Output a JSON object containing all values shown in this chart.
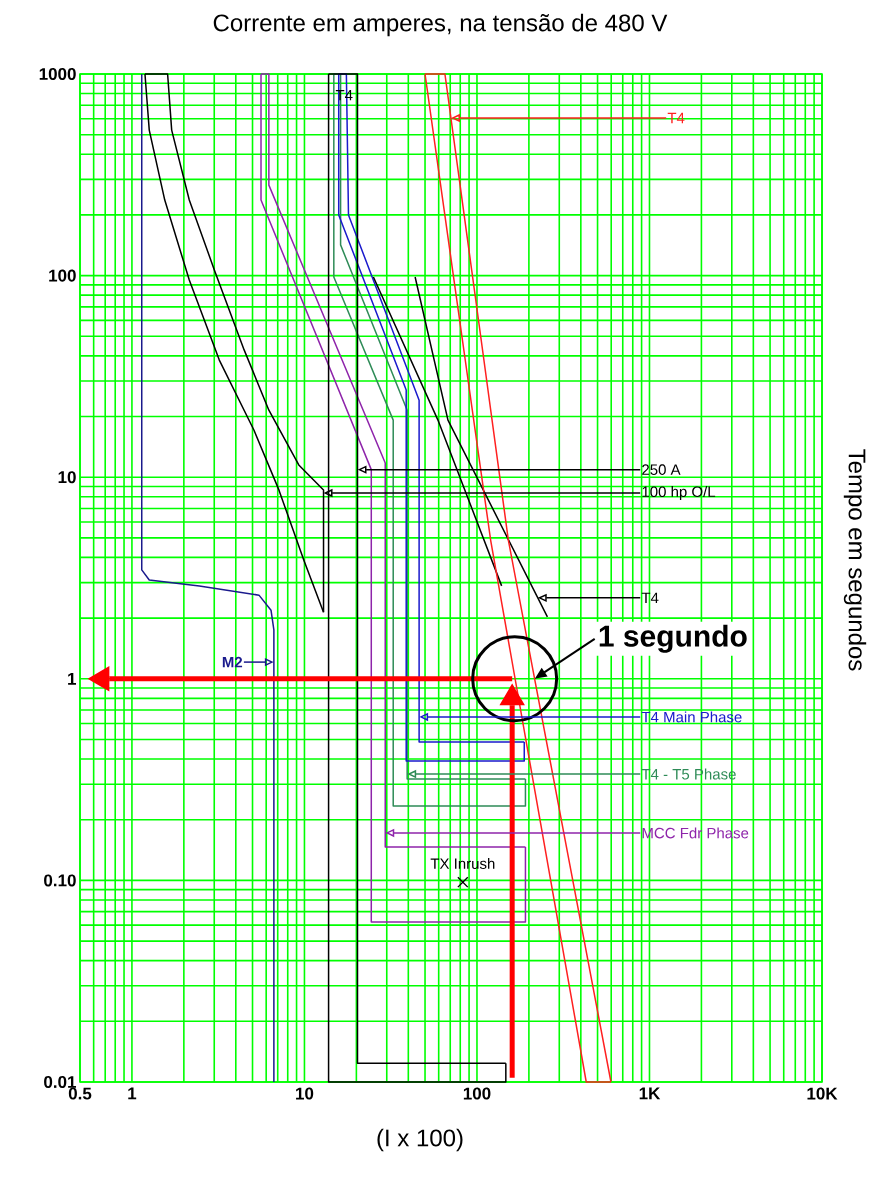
{
  "chart_data": {
    "type": "line",
    "title": "Corrente em amperes, na tensão de  480 V",
    "xlabel": "(I x 100)",
    "ylabel": "Tempo em segundos",
    "log": "xy",
    "grid": true,
    "xlim": [
      0.5,
      10000
    ],
    "ylim": [
      0.01,
      1000
    ],
    "xticks": [
      0.5,
      1,
      10,
      100,
      {
        "value": 1000,
        "label": "1K"
      },
      {
        "value": 10000,
        "label": "10K"
      }
    ],
    "yticks": [
      0.01,
      {
        "value": 0.1,
        "label": "0.10"
      },
      1,
      10,
      100,
      1000
    ],
    "series": [
      {
        "color": "#1a1a8c",
        "x": [
          1.14,
          1.14,
          1.26,
          2.46,
          5.45,
          6.4,
          6.65,
          6.65
        ],
        "values": [
          1000,
          3.47,
          3.09,
          2.89,
          2.6,
          2.19,
          1.75,
          0.01
        ]
      },
      {
        "color": "#000000",
        "x": [
          1.19,
          1.26,
          1.55,
          2.15,
          3.21,
          5.1,
          7.11,
          9.91,
          12.9
        ],
        "values": [
          1000,
          527,
          237,
          95,
          38.1,
          17.1,
          8.65,
          3.88,
          2.14
        ]
      },
      {
        "color": "#000000",
        "x": [
          1.19,
          1.61,
          1.7,
          2.15,
          3.0,
          4.47,
          6.22,
          9.27,
          12.9,
          12.9
        ],
        "values": [
          1000,
          1000,
          527,
          237,
          107,
          42.8,
          21.5,
          11.5,
          8.65,
          2.14
        ]
      },
      {
        "color": "#8e24aa",
        "x": [
          5.6,
          5.6,
          24.4,
          24.4,
          191,
          191
        ],
        "values": [
          1000,
          237,
          10.9,
          0.0622,
          0.0622,
          0.1465
        ]
      },
      {
        "color": "#8e24aa",
        "x": [
          5.6,
          6.22,
          6.22,
          29.4,
          29.4,
          191
        ],
        "values": [
          1000,
          1000,
          281,
          11.75,
          0.1465,
          0.1465
        ]
      },
      {
        "color": "#2e8b57",
        "x": [
          14.8,
          14.8,
          32.7,
          32.7,
          191,
          191
        ],
        "values": [
          1000,
          98.4,
          19.2,
          0.234,
          0.234,
          0.318
        ]
      },
      {
        "color": "#2e8b57",
        "x": [
          14.8,
          16.2,
          16.2,
          39.4,
          39.4,
          191
        ],
        "values": [
          1000,
          1000,
          142,
          21.5,
          0.318,
          0.318
        ]
      },
      {
        "color": "#1a1acc",
        "x": [
          15.8,
          15.8,
          38.9,
          38.9,
          188,
          188
        ],
        "values": [
          1000,
          200,
          27.1,
          0.391,
          0.391,
          0.486
        ]
      },
      {
        "color": "#1a1acc",
        "x": [
          15.8,
          17.5,
          18.0,
          46.2,
          46.2,
          188
        ],
        "values": [
          1000,
          1000,
          200,
          24.1,
          0.486,
          0.486
        ]
      },
      {
        "color": "#000000",
        "x": [
          13.8,
          13.8,
          147,
          147
        ],
        "values": [
          1000,
          0.01,
          0.01,
          0.0124
        ]
      },
      {
        "color": "#000000",
        "x": [
          13.8,
          20.3,
          20.3,
          147
        ],
        "values": [
          1000,
          1000,
          0.0124,
          0.0124
        ]
      },
      {
        "color": "#000000",
        "x": [
          25.1,
          59.4,
          139
        ],
        "values": [
          98.4,
          19.2,
          2.89
        ]
      },
      {
        "color": "#000000",
        "x": [
          43.8,
          67.9,
          256
        ],
        "values": [
          98.4,
          19.2,
          2.03
        ]
      },
      {
        "color": "#ff2020",
        "x": [
          50,
          76.4,
          120,
          430,
          598
        ],
        "values": [
          1000,
          75.7,
          4.88,
          0.01,
          0.01
        ]
      },
      {
        "color": "#ff2020",
        "x": [
          50,
          65.2,
          98.4,
          152,
          598
        ],
        "values": [
          1000,
          1000,
          75.7,
          4.88,
          0.01
        ]
      },
      {
        "type": "scatter",
        "marker": "cross",
        "color": "#000000",
        "x": [
          82.8
        ],
        "values": [
          0.098
        ]
      },
      {
        "color": "#ff0000",
        "x": [
          160,
          0.74
        ],
        "values": [
          1,
          1
        ]
      },
      {
        "color": "#ff0000",
        "x": [
          160,
          160
        ],
        "values": [
          0.0105,
          0.74
        ]
      }
    ],
    "annotations": [
      {
        "text": "T4",
        "x": 70.7,
        "y": 605
      },
      "T4",
      {
        "text": "250 A",
        "x": 20.3,
        "y": 10.9
      },
      {
        "text": "100 hp O/L",
        "x": 12.9,
        "y": 8.35
      },
      {
        "text": "T4",
        "x": 225,
        "y": 2.52
      },
      {
        "text": "1 segundo",
        "x": 216,
        "y": 1
      },
      {
        "text": "M2",
        "x": 6.65,
        "y": 1.21
      },
      {
        "text": "T4 Main Phase",
        "x": 46.2,
        "y": 0.647
      },
      {
        "text": "T4 - T5 Phase",
        "x": 39.4,
        "y": 0.337
      },
      {
        "text": "MCC Fdr Phase",
        "x": 29.4,
        "y": 0.172
      },
      {
        "text": "TX Inrush",
        "x": 82.8,
        "y": 0.098
      }
    ]
  }
}
